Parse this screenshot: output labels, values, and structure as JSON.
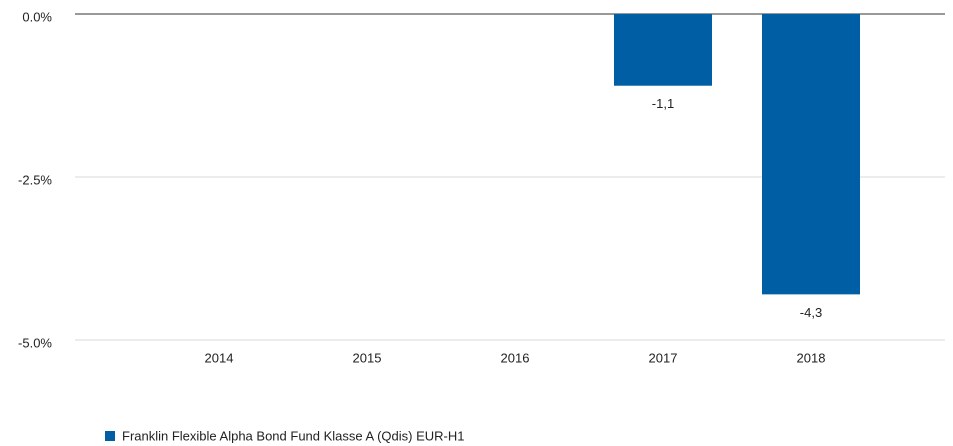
{
  "chart_data": {
    "type": "bar",
    "categories": [
      "2014",
      "2015",
      "2016",
      "2017",
      "2018"
    ],
    "series": [
      {
        "name": "Franklin Flexible Alpha Bond Fund Klasse A (Qdis) EUR-H1",
        "color": "#005ea5",
        "values": [
          null,
          null,
          null,
          -1.1,
          -4.3
        ],
        "value_labels": [
          null,
          null,
          null,
          "-1,1",
          "-4,3"
        ]
      }
    ],
    "ylim": [
      -5,
      0
    ],
    "yticks": [
      {
        "value": 0,
        "label": "0.0%"
      },
      {
        "value": -2.5,
        "label": "-2.5%"
      },
      {
        "value": -5,
        "label": "-5.0%"
      }
    ],
    "grid": true
  }
}
